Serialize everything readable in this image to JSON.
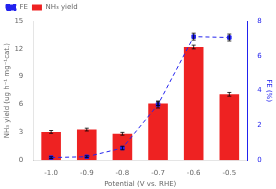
{
  "chart_data": {
    "type": "bar",
    "categories": [
      "-1.0",
      "-0.9",
      "-0.8",
      "-0.7",
      "-0.6",
      "-0.5"
    ],
    "series": [
      {
        "name": "NH₃ yield",
        "type": "bar",
        "color": "#ee2222",
        "values": [
          3.05,
          3.3,
          2.85,
          6.1,
          12.2,
          7.1
        ],
        "errors": [
          0.15,
          0.15,
          0.15,
          0.2,
          0.2,
          0.2
        ]
      },
      {
        "name": "FE",
        "type": "line",
        "axis": "y2",
        "color": "#2222ee",
        "line_style": "dashed",
        "marker": "square",
        "values": [
          0.15,
          0.2,
          0.7,
          3.2,
          7.1,
          7.05
        ],
        "errors": [
          0.05,
          0.05,
          0.1,
          0.2,
          0.2,
          0.2
        ]
      }
    ],
    "x_label": "Potential (V vs. RHE)",
    "y_label": "NH₃ yield (ug h⁻¹ mg⁻¹cat.)",
    "y2_label": "FE (%)",
    "ylim": [
      0,
      15
    ],
    "yticks": [
      0,
      3,
      6,
      9,
      12,
      15
    ],
    "y2lim": [
      0,
      8
    ],
    "y2ticks": [
      0,
      2,
      4,
      6,
      8
    ],
    "legend": "upper left",
    "grid": false
  }
}
